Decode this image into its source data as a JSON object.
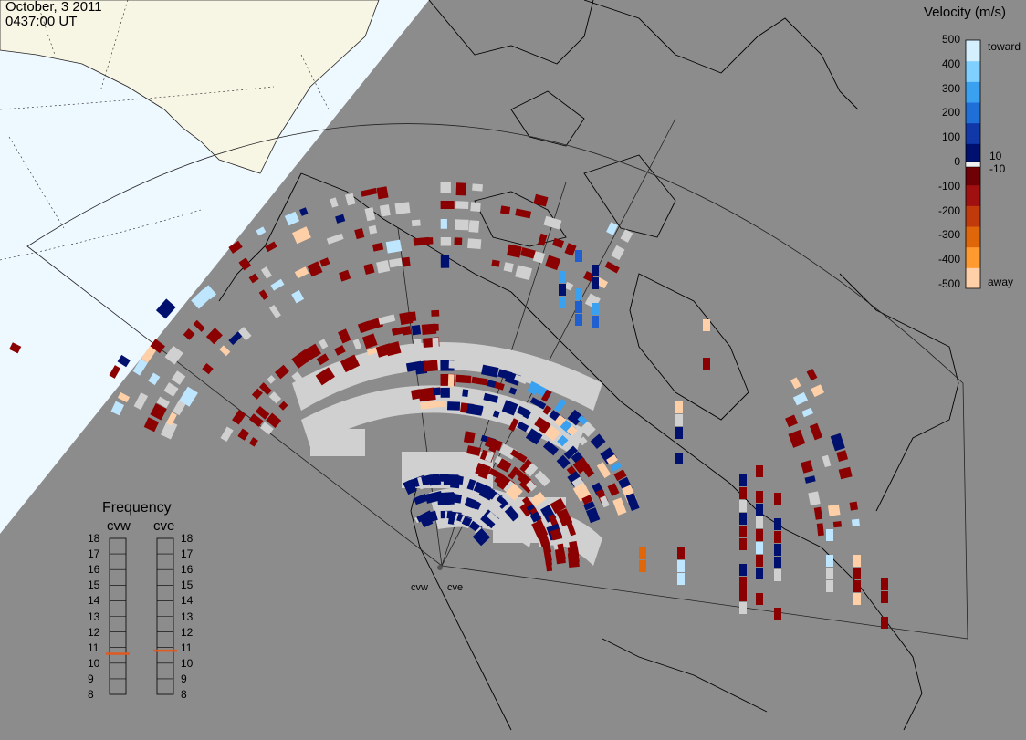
{
  "header": {
    "date": "October, 3 2011",
    "time": "0437:00 UT"
  },
  "velocity_scale": {
    "title": "Velocity (m/s)",
    "ticks": [
      "500",
      "400",
      "300",
      "200",
      "100",
      "0",
      "-100",
      "-200",
      "-300",
      "-400",
      "-500"
    ],
    "extra_ticks": [
      "10",
      "-10"
    ],
    "toward_label": "toward",
    "away_label": "away",
    "colors": [
      "#d4f0ff",
      "#7fd0ff",
      "#3aa0f0",
      "#1f6fd8",
      "#1038a8",
      "#00106e",
      "#6e0006",
      "#a01010",
      "#c03a0c",
      "#e0660a",
      "#ff9a30",
      "#ffd0a8"
    ]
  },
  "frequency": {
    "title": "Frequency",
    "radars": [
      {
        "name": "cvw",
        "freq_mhz": 10.6
      },
      {
        "name": "cve",
        "freq_mhz": 10.8
      }
    ],
    "ticks": [
      "18",
      "17",
      "16",
      "15",
      "14",
      "13",
      "12",
      "11",
      "10",
      "9",
      "8"
    ],
    "marker_color": "#e05a20"
  },
  "map": {
    "background_land": "#8c8c8c",
    "night_side": "#f0f8ff",
    "groundscatter_color": "#d0d0d0",
    "site_labels": [
      "cvw",
      "cve"
    ]
  }
}
